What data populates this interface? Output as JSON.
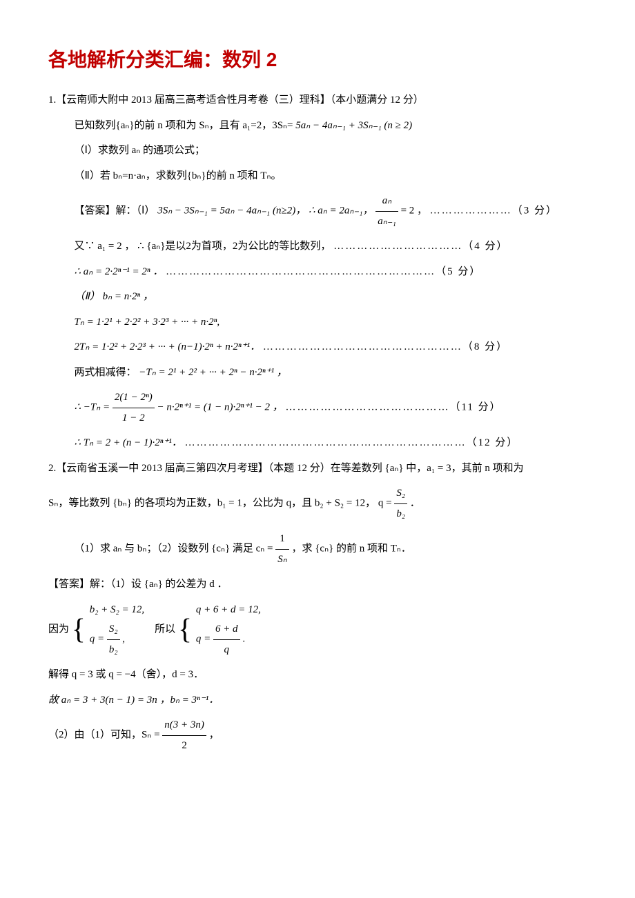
{
  "title": "各地解析分类汇编：数列 2",
  "p1": {
    "head": "1.【云南师大附中 2013 届高三高考适合性月考卷（三）理科】（本小题满分 12 分）",
    "given": "已知数列{aₙ}的前 n 项和为 Sₙ，且有 a₁=2，3Sₙ=",
    "given_math": "5aₙ − 4aₙ₋₁ + 3Sₙ₋₁ (n ≥ 2)",
    "q1": "（Ⅰ）求数列 aₙ 的通项公式；",
    "q2": "（Ⅱ）若 bₙ=n·aₙ，求数列{bₙ}的前 n 项和 Tₙ。",
    "ans_label": "【答案】解：（Ⅰ）",
    "ans_a": "3Sₙ − 3Sₙ₋₁ = 5aₙ − 4aₙ₋₁ (n≥2)， ∴ aₙ = 2aₙ₋₁，",
    "frac_an": "aₙ",
    "frac_an1": "aₙ₋₁",
    "eq2": " = 2 ，",
    "score3": "…………………（3 分）",
    "lineB": "又∵ a₁ = 2 ， ∴ {aₙ}是以2为首项，2为公比的等比数列，",
    "score4": "……………………………（4 分）",
    "lineC": "∴ aₙ = 2·2ⁿ⁻¹ = 2ⁿ ．",
    "score5": "……………………………………………………………（5 分）",
    "part2_head": "（Ⅱ） bₙ = n·2ⁿ ，",
    "tn": "Tₙ = 1·2¹ + 2·2² + 3·2³ + ··· + n·2ⁿ,",
    "tn2": "2Tₙ = 1·2² + 2·2³ + ··· + (n−1)·2ⁿ + n·2ⁿ⁺¹．",
    "score8": "……………………………………………（8 分）",
    "sub_label": "两式相减得：",
    "sub_eq": "−Tₙ = 2¹ + 2² + ··· + 2ⁿ − n·2ⁿ⁺¹ ，",
    "neg_tn_pre": "∴ −Tₙ = ",
    "neg_tn_num": "2(1 − 2ⁿ)",
    "neg_tn_den": "1 − 2",
    "neg_tn_post": " − n·2ⁿ⁺¹ = (1 − n)·2ⁿ⁺¹ − 2 ，",
    "score11": "……………………………………（11 分）",
    "final": "∴ Tₙ = 2 + (n − 1)·2ⁿ⁺¹．",
    "score12": "………………………………………………………………（12 分）"
  },
  "p2": {
    "head_a": "2.【云南省玉溪一中 2013 届高三第四次月考理】（本题 12 分）在等差数列 {aₙ} 中，a₁ = 3，其前 n 项和为",
    "head_b_pre": "Sₙ，等比数列 {bₙ} 的各项均为正数，b₁ = 1，公比为 q，且 b₂ + S₂ = 12， q = ",
    "q_num": "S₂",
    "q_den": "b₂",
    "dot": "．",
    "q1_pre": "（1）求 aₙ 与 bₙ；（2）设数列 {cₙ} 满足 cₙ = ",
    "c_num": "1",
    "c_den": "Sₙ",
    "q1_post": "，求 {cₙ} 的前 n 项和 Tₙ．",
    "ans_label": "【答案】解：（1）设 {aₙ} 的公差为 d ．",
    "because": "因为",
    "sys1_r1": "b₂ + S₂ = 12,",
    "sys1_r2_pre": "q = ",
    "sys1_r2_num": "S₂",
    "sys1_r2_den": "b₂",
    "sys1_r2_post": ",",
    "so": "所以",
    "sys2_r1": "q + 6 + d = 12,",
    "sys2_r2_pre": "q = ",
    "sys2_r2_num": "6 + d",
    "sys2_r2_den": "q",
    "sys2_r2_post": ".",
    "solve": "解得  q = 3 或 q = −4（舍），d = 3．",
    "result": "故 aₙ = 3 + 3(n − 1) = 3n  ，bₙ = 3ⁿ⁻¹．",
    "part2_pre": "（2）由（1）可知，Sₙ = ",
    "sn_num": "n(3 + 3n)",
    "sn_den": "2",
    "part2_post": "，"
  }
}
